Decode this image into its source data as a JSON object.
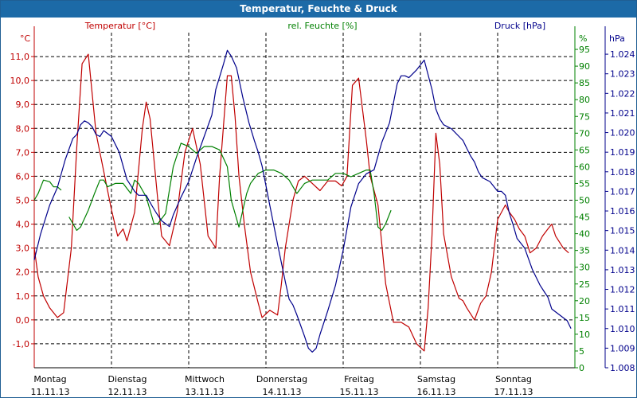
{
  "window": {
    "title": "Temperatur, Feuchte & Druck"
  },
  "chart_data": {
    "type": "line",
    "title": "Temperatur, Feuchte & Druck",
    "x": {
      "range": [
        0,
        7
      ],
      "ticks": [
        {
          "day": "Montag",
          "date": "11.11.13"
        },
        {
          "day": "Dienstag",
          "date": "12.11.13"
        },
        {
          "day": "Mittwoch",
          "date": "13.11.13"
        },
        {
          "day": "Donnerstag",
          "date": "14.11.13"
        },
        {
          "day": "Freitag",
          "date": "15.11.13"
        },
        {
          "day": "Samstag",
          "date": "16.11.13"
        },
        {
          "day": "Sonntag",
          "date": "17.11.13"
        }
      ]
    },
    "axes": {
      "temperature": {
        "label": "Temperatur [°C]",
        "unit": "°C",
        "range": [
          -2,
          12
        ],
        "ticks": [
          "-1,0",
          "0,0",
          "1,0",
          "2,0",
          "3,0",
          "4,0",
          "5,0",
          "6,0",
          "7,0",
          "8,0",
          "9,0",
          "10,0",
          "11,0"
        ],
        "tick_values": [
          -1,
          0,
          1,
          2,
          3,
          4,
          5,
          6,
          7,
          8,
          9,
          10,
          11
        ],
        "color": "#c00000"
      },
      "humidity": {
        "label": "rel. Feuchte [%]",
        "unit": "%",
        "range": [
          0,
          100
        ],
        "ticks": [
          "0",
          "5",
          "10",
          "15",
          "20",
          "25",
          "30",
          "35",
          "40",
          "45",
          "50",
          "55",
          "60",
          "65",
          "70",
          "75",
          "80",
          "85",
          "90",
          "95"
        ],
        "tick_values": [
          0,
          5,
          10,
          15,
          20,
          25,
          30,
          35,
          40,
          45,
          50,
          55,
          60,
          65,
          70,
          75,
          80,
          85,
          90,
          95
        ],
        "color": "#008000"
      },
      "pressure": {
        "label": "Druck [hPa]",
        "unit": "hPa",
        "range": [
          1.008,
          1.0251
        ],
        "ticks": [
          "1.008",
          "1.009",
          "1.010",
          "1.011",
          "1.012",
          "1.013",
          "1.014",
          "1.015",
          "1.016",
          "1.017",
          "1.018",
          "1.019",
          "1.020",
          "1.021",
          "1.022",
          "1.023",
          "1.024"
        ],
        "tick_values": [
          1.008,
          1.009,
          1.01,
          1.011,
          1.012,
          1.013,
          1.014,
          1.015,
          1.016,
          1.017,
          1.018,
          1.019,
          1.02,
          1.021,
          1.022,
          1.023,
          1.024
        ],
        "color": "#00008b"
      }
    },
    "series": [
      {
        "name": "Temperatur [°C]",
        "axis": "temperature",
        "color": "#c00000",
        "x": [
          0,
          0.05,
          0.12,
          0.2,
          0.3,
          0.38,
          0.48,
          0.55,
          0.62,
          0.7,
          0.8,
          0.9,
          1.0,
          1.08,
          1.15,
          1.2,
          1.3,
          1.4,
          1.45,
          1.5,
          1.6,
          1.65,
          1.75,
          1.85,
          1.95,
          2.05,
          2.15,
          2.25,
          2.35,
          2.4,
          2.5,
          2.55,
          2.6,
          2.65,
          2.72,
          2.8,
          2.9,
          2.95,
          3.05,
          3.15,
          3.2,
          3.25,
          3.35,
          3.42,
          3.5,
          3.6,
          3.7,
          3.8,
          3.9,
          3.98,
          4.05,
          4.12,
          4.2,
          4.3,
          4.35,
          4.45,
          4.55,
          4.65,
          4.75,
          4.85,
          4.95,
          5.05,
          5.1,
          5.15,
          5.2,
          5.25,
          5.3,
          5.4,
          5.5,
          5.55,
          5.6,
          5.7,
          5.78,
          5.85,
          5.92,
          6.0,
          6.1,
          6.15,
          6.22,
          6.28,
          6.35,
          6.42,
          6.5,
          6.58,
          6.65,
          6.7,
          6.75,
          6.85,
          6.92
        ],
        "values": [
          3.0,
          1.8,
          1.0,
          0.5,
          0.1,
          0.3,
          3.0,
          7.2,
          10.7,
          11.1,
          7.8,
          6.2,
          4.6,
          3.5,
          3.8,
          3.3,
          4.5,
          8.0,
          9.1,
          8.4,
          5.0,
          3.5,
          3.1,
          4.5,
          7.0,
          8.0,
          6.5,
          3.5,
          3.0,
          6.0,
          10.2,
          10.2,
          8.5,
          6.0,
          4.0,
          2.0,
          0.7,
          0.1,
          0.4,
          0.2,
          1.5,
          3.0,
          5.0,
          5.8,
          6.0,
          5.7,
          5.4,
          5.8,
          5.8,
          5.6,
          6.0,
          9.8,
          10.1,
          7.5,
          6.0,
          4.8,
          1.5,
          -0.1,
          -0.1,
          -0.3,
          -1.0,
          -1.3,
          0.5,
          3.5,
          7.8,
          6.5,
          3.6,
          1.8,
          0.9,
          0.8,
          0.5,
          0.0,
          0.7,
          1.0,
          2.0,
          4.2,
          4.8,
          4.5,
          4.2,
          3.8,
          3.5,
          2.8,
          3.0,
          3.5,
          3.8,
          4.0,
          3.5,
          3.0,
          2.8
        ]
      },
      {
        "name": "rel. Feuchte [%]",
        "axis": "humidity",
        "color": "#008000",
        "x": [
          0,
          0.05,
          0.12,
          0.2,
          0.25,
          0.3,
          0.35,
          null,
          0.45,
          0.55,
          0.6,
          0.7,
          0.78,
          0.85,
          0.9,
          0.95,
          1.05,
          1.15,
          1.25,
          1.3,
          1.35,
          1.45,
          1.55,
          1.6,
          1.7,
          1.8,
          1.9,
          2.0,
          2.1,
          2.2,
          2.3,
          2.4,
          2.5,
          2.55,
          2.65,
          2.75,
          2.8,
          2.9,
          3.0,
          3.1,
          3.2,
          3.3,
          3.4,
          3.5,
          3.6,
          3.7,
          3.8,
          3.9,
          4.0,
          4.1,
          4.2,
          4.3,
          4.35,
          4.4,
          4.45,
          4.5,
          4.55,
          4.62
        ],
        "values": [
          50,
          52,
          56,
          55.5,
          54,
          54,
          53,
          null,
          45,
          41,
          42,
          47,
          52,
          56,
          56,
          54,
          55,
          55,
          52,
          56,
          55,
          51,
          43,
          43,
          46,
          60,
          67,
          66,
          64,
          66,
          66,
          65,
          60,
          50,
          42,
          52,
          55,
          58,
          59,
          59,
          58,
          56,
          52,
          55,
          56,
          56,
          56,
          58,
          58,
          57,
          58,
          59,
          59,
          52,
          42,
          41,
          43,
          47
        ]
      },
      {
        "name": "Druck [hPa]",
        "axis": "pressure",
        "color": "#00008b",
        "x": [
          0,
          0.08,
          0.2,
          0.3,
          0.4,
          0.5,
          0.55,
          0.6,
          0.65,
          0.7,
          0.75,
          0.8,
          0.85,
          0.9,
          1.0,
          1.1,
          1.2,
          1.3,
          1.35,
          1.45,
          1.52,
          1.58,
          1.65,
          1.75,
          1.8,
          1.9,
          2.0,
          2.1,
          2.2,
          2.3,
          2.35,
          2.45,
          2.5,
          2.55,
          2.62,
          2.7,
          2.78,
          2.85,
          2.9,
          2.95,
          3.05,
          3.15,
          3.25,
          3.3,
          3.35,
          3.4,
          3.5,
          3.55,
          3.6,
          3.65,
          3.7,
          3.8,
          3.9,
          4.0,
          4.1,
          4.2,
          4.3,
          4.4,
          4.5,
          4.6,
          4.7,
          4.75,
          4.8,
          4.85,
          4.95,
          5.05,
          5.15,
          5.2,
          5.25,
          5.3,
          5.4,
          5.5,
          5.55,
          5.6,
          5.65,
          5.7,
          5.75,
          5.8,
          5.9,
          6.0,
          6.05,
          6.1,
          6.15,
          6.2,
          6.25,
          6.35,
          6.45,
          6.55,
          6.6,
          6.65,
          6.7,
          6.8,
          6.9,
          6.95
        ],
        "values": [
          1.0135,
          1.0148,
          1.0163,
          1.0172,
          1.0186,
          1.0197,
          1.0199,
          1.0204,
          1.0206,
          1.0205,
          1.0203,
          1.0199,
          1.0198,
          1.0201,
          1.0198,
          1.019,
          1.0176,
          1.017,
          1.0168,
          1.0168,
          1.0163,
          1.0159,
          1.0155,
          1.0152,
          1.0158,
          1.0167,
          1.0175,
          1.0187,
          1.0198,
          1.0209,
          1.0222,
          1.0235,
          1.0242,
          1.0239,
          1.0233,
          1.0218,
          1.0205,
          1.0196,
          1.019,
          1.0183,
          1.0163,
          1.0143,
          1.0124,
          1.0115,
          1.0112,
          1.0107,
          1.0096,
          1.009,
          1.0088,
          1.009,
          1.0097,
          1.0109,
          1.0122,
          1.014,
          1.0162,
          1.0174,
          1.0179,
          1.0181,
          1.0195,
          1.0205,
          1.0225,
          1.0229,
          1.0229,
          1.0228,
          1.0232,
          1.0237,
          1.0222,
          1.0212,
          1.0207,
          1.0204,
          1.0202,
          1.0198,
          1.0196,
          1.0192,
          1.0188,
          1.0185,
          1.018,
          1.0177,
          1.0175,
          1.017,
          1.017,
          1.0168,
          1.0159,
          1.0153,
          1.0146,
          1.0141,
          1.013,
          1.0122,
          1.0119,
          1.0116,
          1.011,
          1.0107,
          1.0104,
          1.01
        ]
      }
    ],
    "grid": true,
    "legend": "top"
  }
}
